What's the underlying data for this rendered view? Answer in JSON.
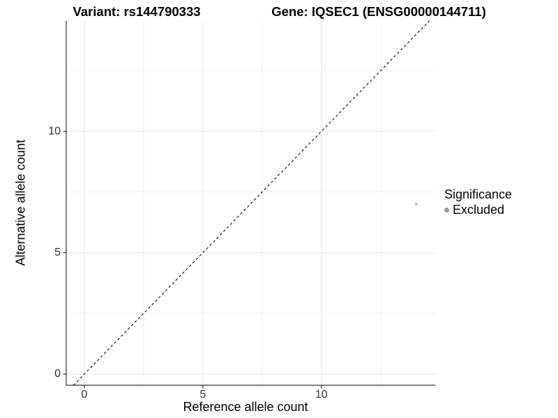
{
  "figure": {
    "title_left": "Variant: rs144790333",
    "title_right": "Gene: IQSEC1 (ENSG00000144711)"
  },
  "legend": {
    "title": "Significance",
    "items": [
      {
        "label": "Excluded",
        "color": "#9a9a9a"
      }
    ]
  },
  "chart_data": {
    "type": "scatter",
    "title": "Variant: rs144790333 / Gene: IQSEC1 (ENSG00000144711)",
    "xlabel": "Reference allele count",
    "ylabel": "Alternative allele count",
    "xlim": [
      -0.76,
      14.8
    ],
    "ylim": [
      -0.46,
      14.55
    ],
    "x_major_ticks": [
      0,
      5,
      10
    ],
    "y_major_ticks": [
      0,
      5,
      10
    ],
    "x_minor_ticks": [
      2.5,
      7.5,
      12.5
    ],
    "y_minor_ticks": [
      2.5,
      7.5,
      12.5
    ],
    "grid": true,
    "legend_position": "right",
    "series": [
      {
        "name": "Excluded",
        "points": [
          {
            "x": 14,
            "y": 7
          }
        ],
        "color": "#c3c3c3",
        "point_radius": 2.3
      }
    ],
    "reference_line": {
      "type": "identity",
      "equation": "y = x",
      "style": "dashed",
      "color": "#000000"
    },
    "colors": {
      "background": "#ffffff",
      "grid_major": "#e6e6e6",
      "grid_minor": "#f2f2f2",
      "axis_line": "#333333",
      "tick_mark": "#333333",
      "tick_text": "#323232",
      "dashed_line": "#000000",
      "point": "#c3c3c3",
      "legend_dot": "#9a9a9a"
    }
  }
}
